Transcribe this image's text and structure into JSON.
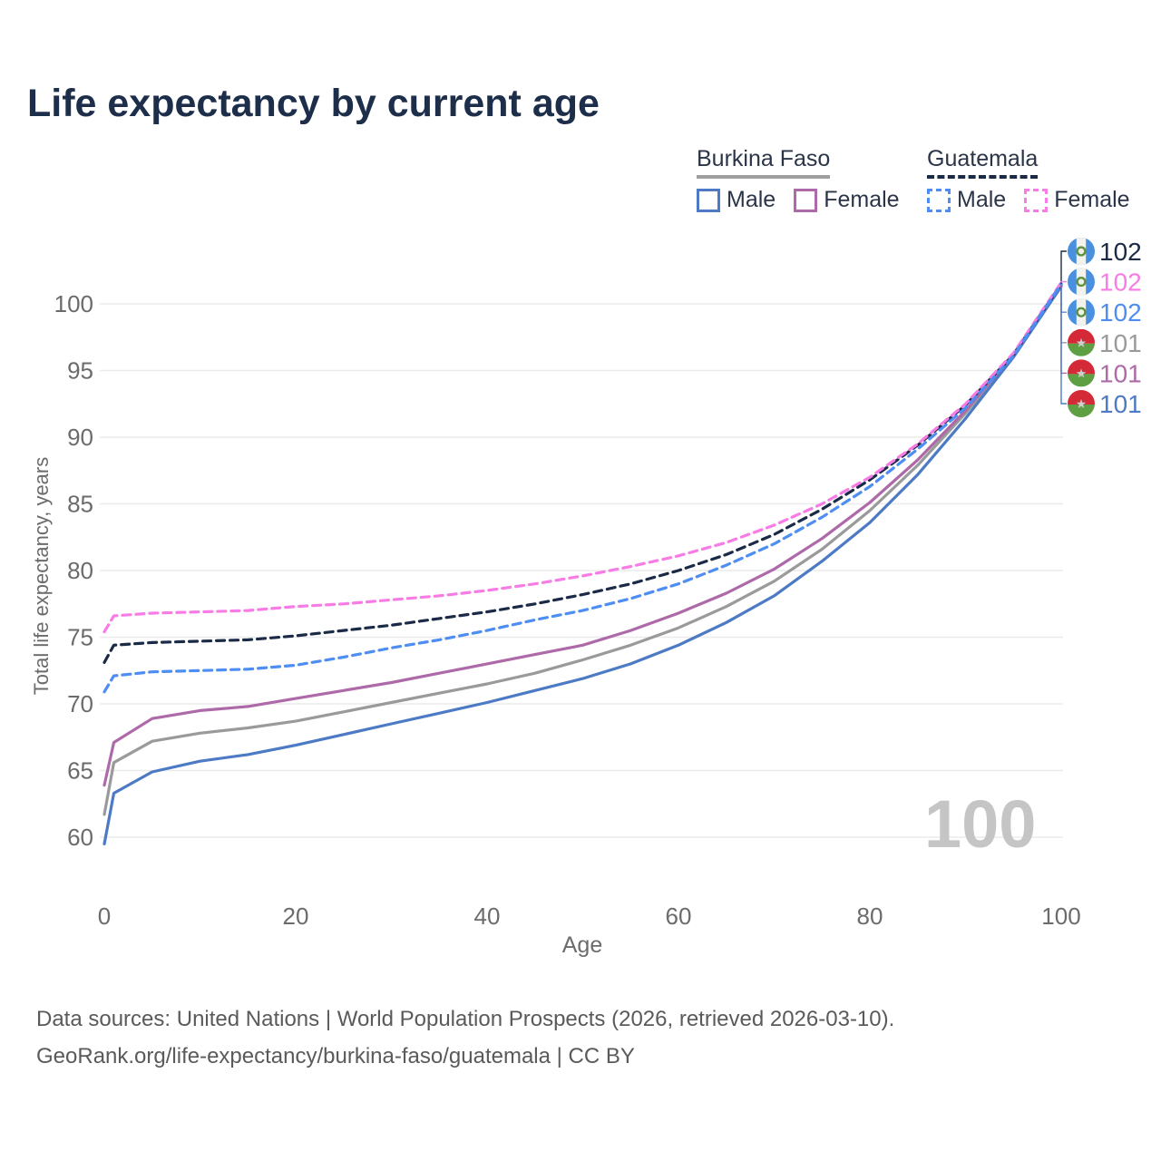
{
  "title": "Life expectancy by current age",
  "legend": {
    "groups": [
      {
        "label": "Burkina Faso",
        "style": "solid",
        "underline_color": "#9e9e9e",
        "items": [
          {
            "label": "Male",
            "color": "#4c7ac4",
            "dashed": false
          },
          {
            "label": "Female",
            "color": "#ae6aa8",
            "dashed": false
          }
        ]
      },
      {
        "label": "Guatemala",
        "style": "dashed",
        "underline_color": "#1b2a47",
        "items": [
          {
            "label": "Male",
            "color": "#4e8df2",
            "dashed": true
          },
          {
            "label": "Female",
            "color": "#f87ce5",
            "dashed": true
          }
        ]
      }
    ]
  },
  "chart_data": {
    "type": "line",
    "title": "Life expectancy by current age",
    "xlabel": "Age",
    "ylabel": "Total life expectancy, years",
    "xlim": [
      0,
      100
    ],
    "ylim": [
      58.5,
      102.5
    ],
    "x_ticks": [
      0,
      20,
      40,
      60,
      80,
      100
    ],
    "y_ticks": [
      60,
      65,
      70,
      75,
      80,
      85,
      90,
      95,
      100
    ],
    "grid": "horizontal",
    "legend_position": "top-right",
    "x": [
      0,
      1,
      5,
      10,
      15,
      20,
      25,
      30,
      35,
      40,
      45,
      50,
      55,
      60,
      65,
      70,
      75,
      80,
      85,
      90,
      95,
      100
    ],
    "series": [
      {
        "name": "Guatemala — Both sexes",
        "country": "Guatemala",
        "sex": "Both sexes",
        "flag": "guatemala",
        "color": "#1b2a47",
        "dashed": true,
        "end_label": "102",
        "values": [
          73.1,
          74.4,
          74.6,
          74.7,
          74.8,
          75.1,
          75.5,
          75.9,
          76.4,
          76.9,
          77.5,
          78.2,
          79.0,
          80.0,
          81.2,
          82.7,
          84.6,
          86.8,
          89.4,
          92.4,
          96.2,
          101.5
        ]
      },
      {
        "name": "Guatemala — Female",
        "country": "Guatemala",
        "sex": "Female",
        "flag": "guatemala",
        "color": "#f87ce5",
        "dashed": true,
        "end_label": "102",
        "values": [
          75.4,
          76.6,
          76.8,
          76.9,
          77.0,
          77.3,
          77.5,
          77.8,
          78.1,
          78.5,
          79.0,
          79.6,
          80.3,
          81.1,
          82.1,
          83.4,
          85.0,
          87.0,
          89.5,
          92.5,
          96.3,
          101.6
        ]
      },
      {
        "name": "Guatemala — Male",
        "country": "Guatemala",
        "sex": "Male",
        "flag": "guatemala",
        "color": "#4e8df2",
        "dashed": true,
        "end_label": "102",
        "values": [
          70.9,
          72.1,
          72.4,
          72.5,
          72.6,
          72.9,
          73.5,
          74.2,
          74.8,
          75.5,
          76.3,
          77.0,
          77.9,
          79.0,
          80.4,
          82.0,
          84.0,
          86.3,
          89.1,
          92.2,
          96.1,
          101.5
        ]
      },
      {
        "name": "Burkina Faso — Both sexes",
        "country": "Burkina Faso",
        "sex": "Both sexes",
        "flag": "burkina-faso",
        "color": "#9a9a9a",
        "dashed": false,
        "end_label": "101",
        "values": [
          61.7,
          65.6,
          67.2,
          67.8,
          68.2,
          68.7,
          69.4,
          70.1,
          70.8,
          71.5,
          72.3,
          73.3,
          74.4,
          75.7,
          77.3,
          79.2,
          81.6,
          84.5,
          87.9,
          91.8,
          96.1,
          101.4
        ]
      },
      {
        "name": "Burkina Faso — Female",
        "country": "Burkina Faso",
        "sex": "Female",
        "flag": "burkina-faso",
        "color": "#ae6aa8",
        "dashed": false,
        "end_label": "101",
        "values": [
          63.9,
          67.1,
          68.9,
          69.5,
          69.8,
          70.4,
          71.0,
          71.6,
          72.3,
          73.0,
          73.7,
          74.4,
          75.5,
          76.8,
          78.3,
          80.1,
          82.4,
          85.1,
          88.3,
          92.0,
          96.2,
          101.4
        ]
      },
      {
        "name": "Burkina Faso — Male",
        "country": "Burkina Faso",
        "sex": "Male",
        "flag": "burkina-faso",
        "color": "#4c7ac4",
        "dashed": false,
        "end_label": "101",
        "values": [
          59.5,
          63.3,
          64.9,
          65.7,
          66.2,
          66.9,
          67.7,
          68.5,
          69.3,
          70.1,
          71.0,
          71.9,
          73.0,
          74.4,
          76.1,
          78.1,
          80.7,
          83.6,
          87.2,
          91.4,
          96.0,
          101.3
        ]
      }
    ]
  },
  "watermark": "100",
  "footer": {
    "line1": "Data sources: United Nations | World Population Prospects (2026, retrieved 2026-03-10).",
    "line2": "GeoRank.org/life-expectancy/burkina-faso/guatemala | CC BY"
  },
  "colors": {
    "title_text": "#1d2e4a",
    "legend_text": "#2a3548",
    "axis_text": "#6b6b6b",
    "gridline": "#ebebeb",
    "footer_text": "#5a5a5a",
    "watermark_text": "#c5c5c5",
    "flag_guatemala_blue": "#4a90e0",
    "flag_burkina_red": "#d42a38",
    "flag_burkina_green": "#5f9f44"
  }
}
